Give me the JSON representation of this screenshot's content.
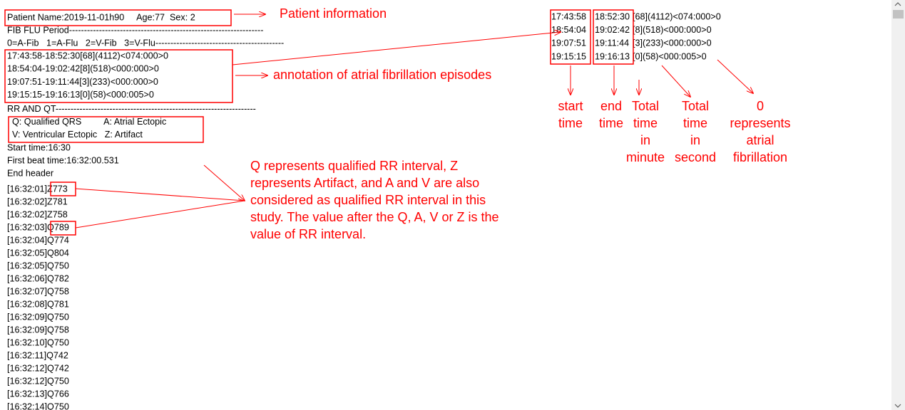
{
  "editor": {
    "header": [
      "Patient Name:2019-11-01h90     Age:77  Sex: 2",
      "FIB FLU Period-----------------------------------------------------------------",
      "0=A-Fib   1=A-Flu   2=V-Fib   3=V-Flu-------------------------------------------",
      "17:43:58-18:52:30[68](4112)<074:000>0",
      "18:54:04-19:02:42[8](518)<000:000>0",
      "19:07:51-19:11:44[3](233)<000:000>0",
      "19:15:15-19:16:13[0](58)<000:005>0",
      "RR AND QT-------------------------------------------------------------------",
      "  Q: Qualified QRS         A: Atrial Ectopic",
      "  V: Ventricular Ectopic   Z: Artifact",
      "Start time:16:30",
      "First beat time:16:32:00.531",
      "End header"
    ],
    "beats": [
      "[16:32:01]Z773",
      "[16:32:02]Z781",
      "[16:32:02]Z758",
      "[16:32:03]Q789",
      "[16:32:04]Q774",
      "[16:32:05]Q804",
      "[16:32:05]Q750",
      "[16:32:06]Q782",
      "[16:32:07]Q758",
      "[16:32:08]Q781",
      "[16:32:09]Q750",
      "[16:32:09]Q758",
      "[16:32:10]Q750",
      "[16:32:11]Q742",
      "[16:32:12]Q742",
      "[16:32:12]Q750",
      "[16:32:13]Q766",
      "[16:32:14]Q750"
    ]
  },
  "annotations": {
    "patient": "Patient information",
    "episodes": "annotation of atrial fibrillation episodes",
    "rr_note": [
      "Q represents qualified RR interval, Z",
      "represents Artifact, and A and V are also",
      "considered as qualified RR interval in this",
      "study. The value after the Q, A, V or Z is the",
      "value of RR interval."
    ]
  },
  "zoom": {
    "rows": [
      {
        "start": "17:43:58",
        "end": "18:52:30",
        "rest": "[68](4112)<074:000>0"
      },
      {
        "start": "18:54:04",
        "end": "19:02:42",
        "rest": "[8](518)<000:000>0"
      },
      {
        "start": "19:07:51",
        "end": "19:11:44",
        "rest": "[3](233)<000:000>0"
      },
      {
        "start": "19:15:15",
        "end": "19:16:13",
        "rest": "[0](58)<000:005>0"
      }
    ],
    "labels": [
      [
        "start",
        "time"
      ],
      [
        "end",
        "time"
      ],
      [
        "Total",
        "time",
        "in",
        "minute"
      ],
      [
        "Total",
        "time",
        "in",
        "second"
      ],
      [
        "0",
        "represents",
        "atrial",
        "fibrillation"
      ]
    ]
  }
}
